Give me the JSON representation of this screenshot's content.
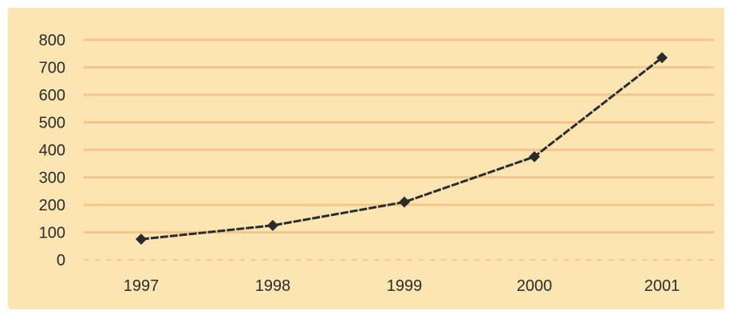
{
  "chart_data": {
    "type": "line",
    "title": "",
    "xlabel": "",
    "ylabel": "",
    "categories": [
      "1997",
      "1998",
      "1999",
      "2000",
      "2001"
    ],
    "series": [
      {
        "values": [
          75,
          125,
          210,
          375,
          735
        ],
        "color": "#2b2b2b"
      }
    ],
    "ylim": [
      0,
      800
    ],
    "yticks": [
      "0",
      "100",
      "200",
      "300",
      "400",
      "500",
      "600",
      "700",
      "800"
    ],
    "grid": true,
    "gridline_color": "#f5c58a",
    "background_color": "#fbe6b3",
    "legend": "none"
  }
}
